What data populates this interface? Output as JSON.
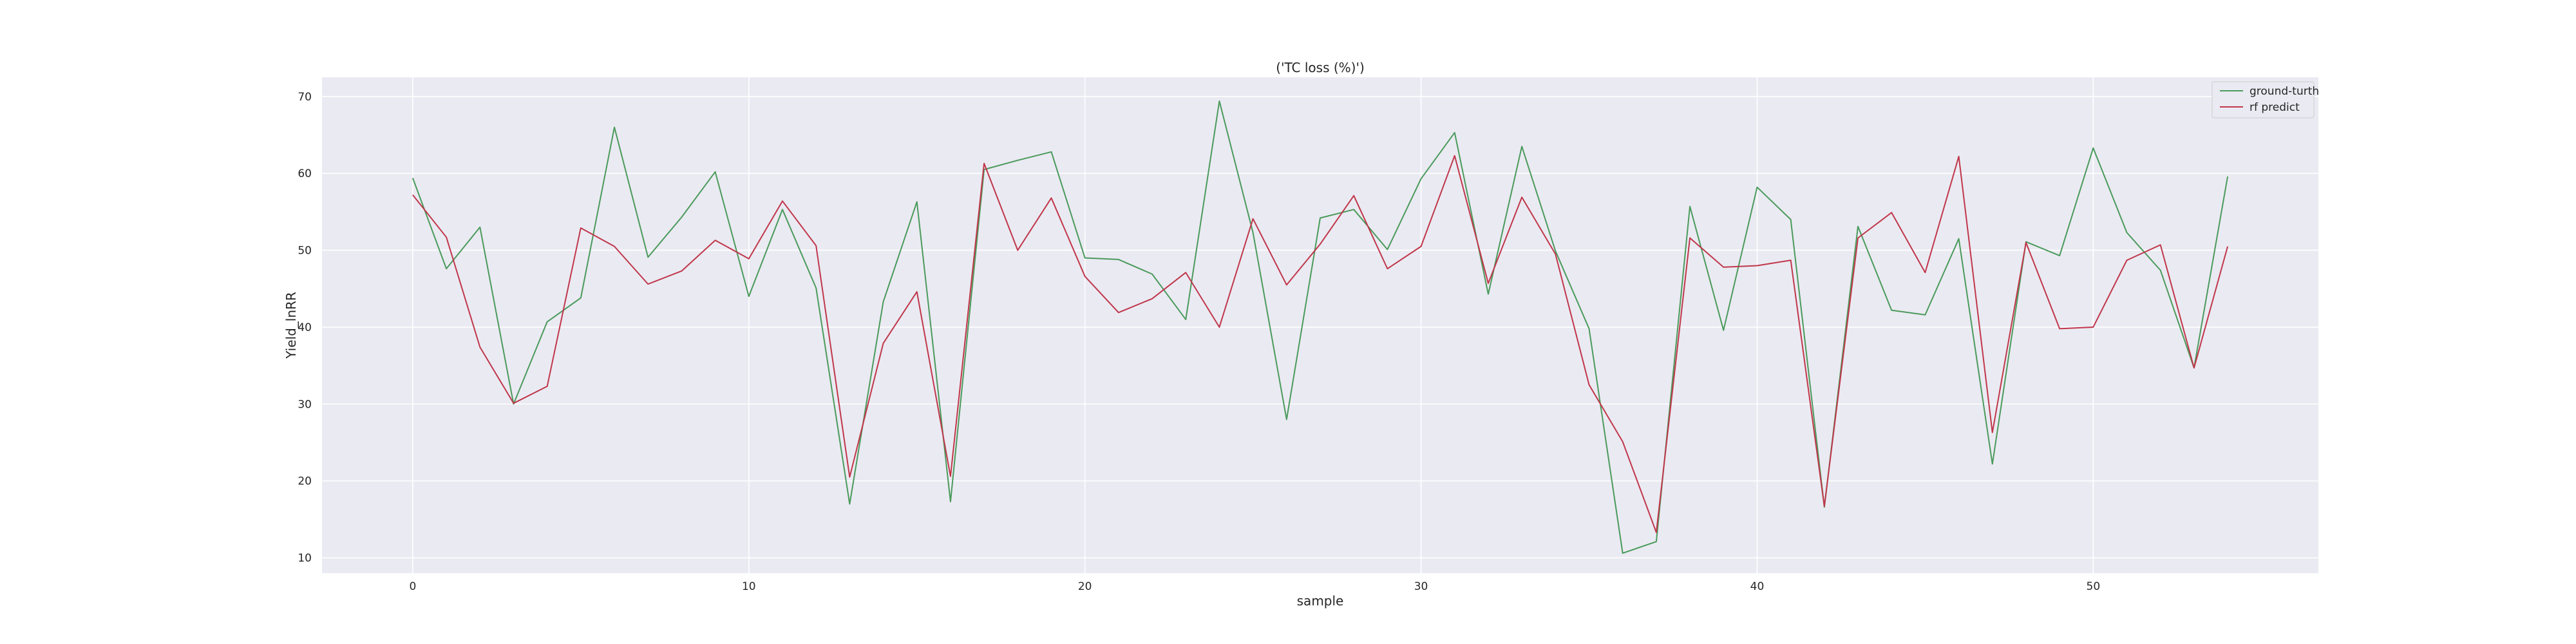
{
  "chart_data": {
    "type": "line",
    "title": "('TC loss (%)')",
    "xlabel": "sample",
    "ylabel": "Yield_lnRR",
    "xlim": [
      -2.7,
      56.7
    ],
    "ylim": [
      8,
      72.5
    ],
    "xticks": [
      0,
      10,
      20,
      30,
      40,
      50
    ],
    "yticks": [
      10,
      20,
      30,
      40,
      50,
      60,
      70
    ],
    "grid": true,
    "legend_position": "top-right",
    "x": [
      0,
      1,
      2,
      3,
      4,
      5,
      6,
      7,
      8,
      9,
      10,
      11,
      12,
      13,
      14,
      15,
      16,
      17,
      18,
      19,
      20,
      21,
      22,
      23,
      24,
      25,
      26,
      27,
      28,
      29,
      30,
      31,
      32,
      33,
      34,
      35,
      36,
      37,
      38,
      39,
      40,
      41,
      42,
      43,
      44,
      45,
      46,
      47,
      48,
      49,
      50,
      51,
      52,
      53,
      54
    ],
    "series": [
      {
        "name": "ground-turth",
        "color": "#4a9a5b",
        "values": [
          59.4,
          47.6,
          53.0,
          30.0,
          40.7,
          43.8,
          66.0,
          49.1,
          54.3,
          60.2,
          44.0,
          55.3,
          45.1,
          17.0,
          43.3,
          56.3,
          17.3,
          60.5,
          61.7,
          62.8,
          49.0,
          48.8,
          46.9,
          41.0,
          69.4,
          52.3,
          28.0,
          54.2,
          55.3,
          50.1,
          59.3,
          65.3,
          44.3,
          63.5,
          49.9,
          39.8,
          10.6,
          12.1,
          55.7,
          39.6,
          58.2,
          54.0,
          16.6,
          53.1,
          42.2,
          41.6,
          51.5,
          22.2,
          51.1,
          49.3,
          63.3,
          52.3,
          47.4,
          34.7,
          59.6
        ]
      },
      {
        "name": "rf predict",
        "color": "#c0364a",
        "values": [
          57.2,
          51.7,
          37.4,
          30.1,
          32.3,
          52.9,
          50.5,
          45.6,
          47.3,
          51.3,
          48.9,
          56.4,
          50.6,
          20.5,
          37.9,
          44.6,
          20.6,
          61.3,
          50.0,
          56.8,
          46.6,
          41.9,
          43.7,
          47.1,
          40.0,
          54.1,
          45.5,
          50.8,
          57.1,
          47.6,
          50.5,
          62.3,
          45.7,
          56.9,
          49.5,
          32.5,
          25.1,
          13.3,
          51.6,
          47.8,
          48.0,
          48.7,
          16.7,
          51.6,
          54.9,
          47.1,
          62.2,
          26.3,
          51.0,
          39.8,
          40.0,
          48.7,
          50.7,
          34.7,
          50.5
        ]
      }
    ]
  }
}
